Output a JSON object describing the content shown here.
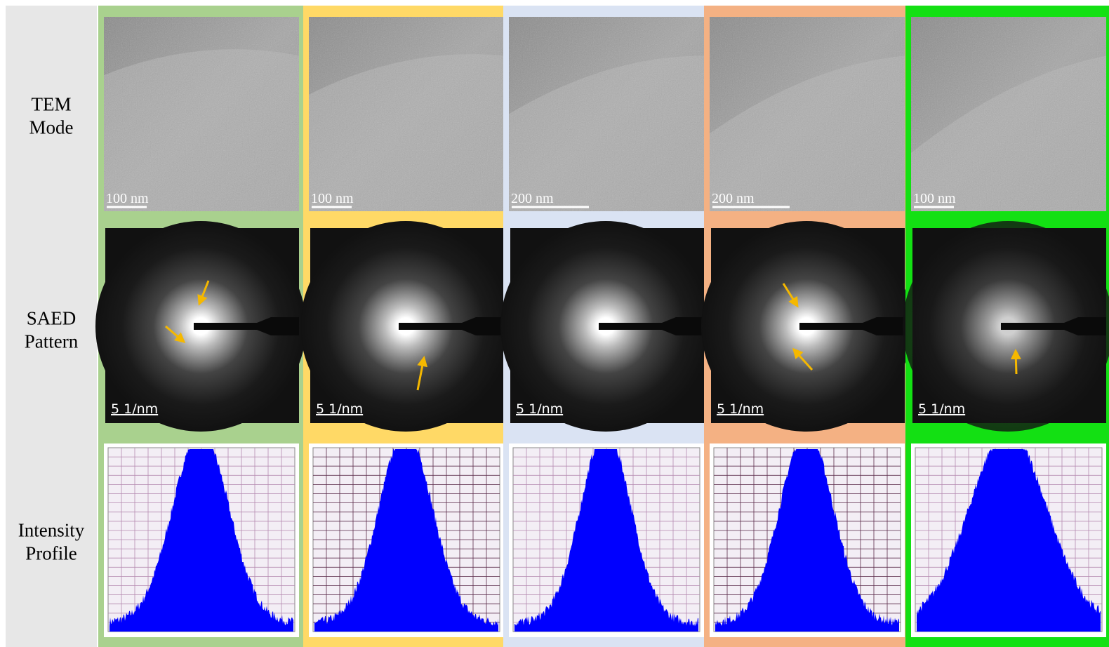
{
  "rows": [
    {
      "lines": [
        "TEM",
        "Mode"
      ]
    },
    {
      "lines": [
        "SAED",
        "Pattern"
      ]
    },
    {
      "lines": [
        "Intensity",
        "Profile"
      ]
    }
  ],
  "columns": [
    {
      "color": "#a9d18e",
      "tem_scale": "100 nm",
      "saed_scale": "5 1/nm"
    },
    {
      "color": "#ffd966",
      "tem_scale": "100 nm",
      "saed_scale": "5 1/nm"
    },
    {
      "color": "#dae3f3",
      "tem_scale": "200 nm",
      "saed_scale": "5 1/nm"
    },
    {
      "color": "#f4b183",
      "tem_scale": "200 nm",
      "saed_scale": "5 1/nm"
    },
    {
      "color": "#13e013",
      "tem_scale": "100 nm",
      "saed_scale": "5 1/nm"
    }
  ]
}
